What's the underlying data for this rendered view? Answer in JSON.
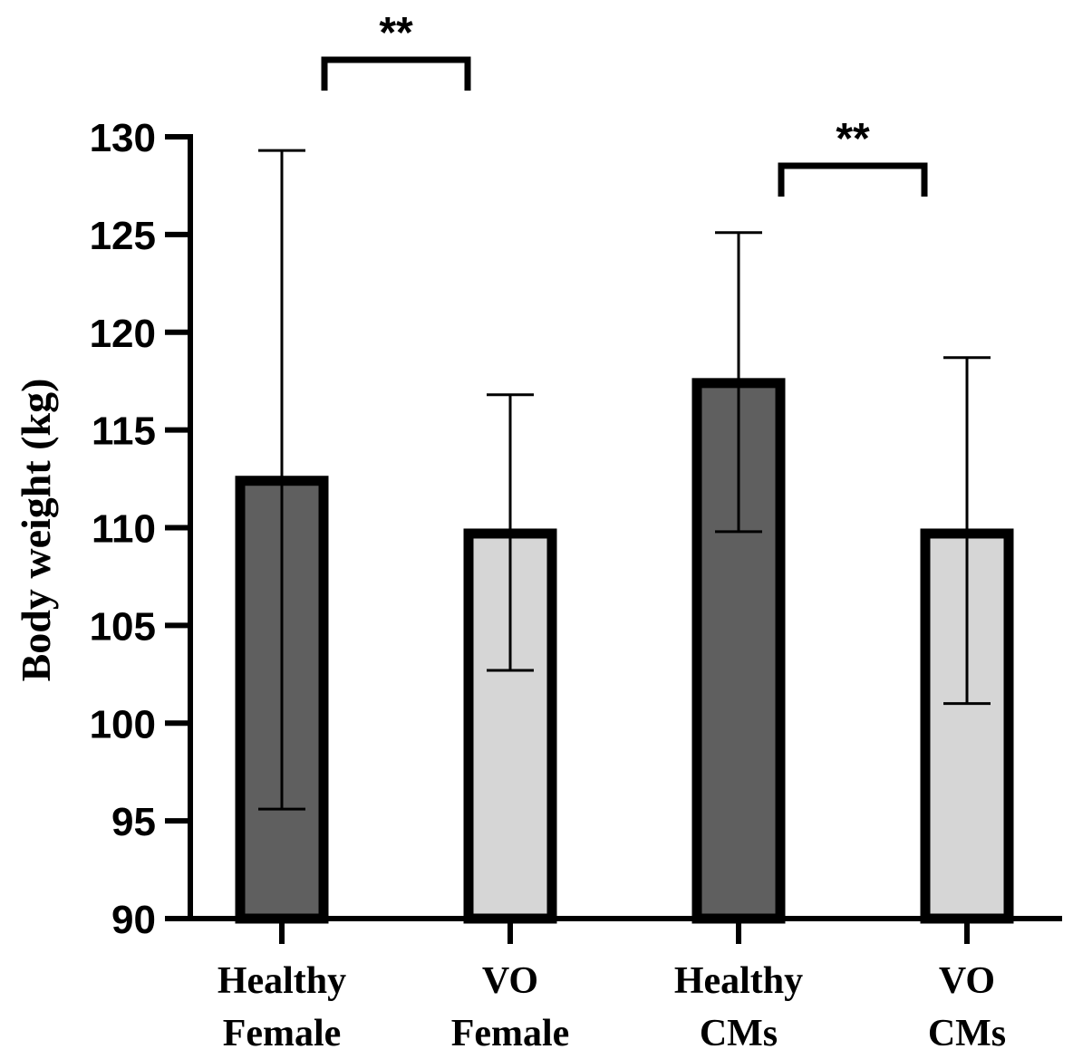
{
  "chart_data": {
    "type": "bar",
    "title": "",
    "xlabel": "",
    "ylabel": "Body weight (kg)",
    "ylim": [
      90,
      130
    ],
    "yticks": [
      90,
      95,
      100,
      105,
      110,
      115,
      120,
      125,
      130
    ],
    "categories": [
      {
        "line1": "Healthy",
        "line2": "Female"
      },
      {
        "line1": "VO",
        "line2": "Female"
      },
      {
        "line1": "Healthy",
        "line2": "CMs"
      },
      {
        "line1": "VO",
        "line2": "CMs"
      }
    ],
    "values": [
      112.4,
      109.7,
      117.4,
      109.7
    ],
    "error_low": [
      95.6,
      102.7,
      109.8,
      101.0
    ],
    "error_high": [
      129.3,
      116.8,
      125.1,
      118.7
    ],
    "bar_colors": [
      "#5f5f5f",
      "#d6d6d6",
      "#5f5f5f",
      "#d6d6d6"
    ],
    "significance": [
      {
        "from": 0,
        "to": 1,
        "label": "**"
      },
      {
        "from": 2,
        "to": 3,
        "label": "**"
      }
    ]
  }
}
